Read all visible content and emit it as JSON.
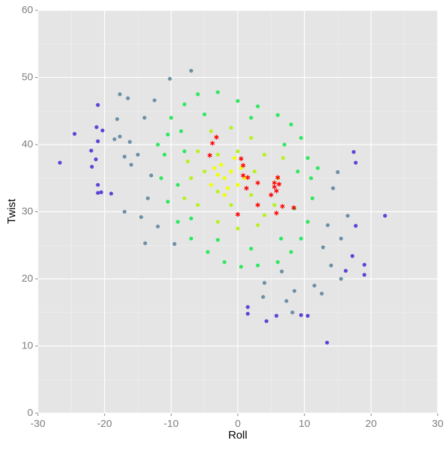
{
  "chart_data": {
    "type": "scatter",
    "x_label": "Roll",
    "y_label": "Twist",
    "xlim": [
      -30,
      30
    ],
    "ylim": [
      0,
      60
    ],
    "xticks": [
      -30,
      -20,
      -10,
      0,
      10,
      20,
      30
    ],
    "yticks": [
      0,
      10,
      20,
      30,
      40,
      50,
      60
    ],
    "xminor": [
      -25,
      -15,
      -5,
      5,
      15,
      25
    ],
    "yminor": [
      5,
      15,
      25,
      35,
      45,
      55
    ],
    "grid": true,
    "series": [
      {
        "color": "#5b44d6",
        "marker": "circle",
        "x": [
          -26.7,
          -24.5,
          -21,
          -21.2,
          -20.3,
          -21,
          -22,
          -21.3,
          -21.9,
          -21,
          -20.5,
          -21,
          -19,
          13.4,
          22.1,
          19,
          19,
          17.7,
          17.4,
          17.7,
          9.5,
          10.5,
          5.8,
          4.3,
          1.5,
          1.5,
          17.2,
          16.2
        ],
        "y": [
          37.3,
          41.6,
          45.9,
          42.6,
          42.1,
          40.5,
          39.1,
          37.8,
          36.7,
          34,
          32.9,
          32.8,
          32.7,
          10.5,
          29.4,
          22.1,
          20.6,
          27.9,
          38.9,
          37.3,
          14.6,
          14.5,
          14.5,
          13.7,
          15.8,
          14.8,
          23.4,
          21.2
        ]
      },
      {
        "color": "#6d90a6",
        "marker": "circle",
        "x": [
          -17.7,
          -16.5,
          -18.1,
          -17.7,
          -18.5,
          -16.2,
          -17,
          -16,
          -17,
          -14.5,
          -13.9,
          -13,
          -15,
          -14,
          -12.5,
          -10.2,
          -7,
          15,
          14.3,
          16.5,
          15.5,
          14,
          15.5,
          12.6,
          11.5,
          8.5,
          7.3,
          3.8,
          4,
          6.6,
          13.5,
          12.8,
          -13.5,
          -12,
          -9.5,
          8.2
        ],
        "y": [
          47.5,
          46.9,
          43.8,
          41.2,
          40.8,
          40.4,
          38.2,
          37,
          30,
          29.2,
          25.3,
          35.4,
          38.5,
          44,
          46.6,
          49.8,
          51,
          35.9,
          33.5,
          29.4,
          26,
          22,
          20,
          17.8,
          19,
          18.2,
          16.7,
          17.3,
          19.4,
          21.1,
          28,
          24.7,
          32,
          27.8,
          25.2,
          15
        ]
      },
      {
        "color": "#2ee860",
        "marker": "circle",
        "x": [
          -10,
          -8,
          -6,
          -3,
          0,
          3,
          6,
          8,
          9.5,
          10.5,
          11,
          11.2,
          10.5,
          9.5,
          8,
          6,
          3,
          0.5,
          -2,
          -4.5,
          -7,
          -9,
          -10.5,
          -11.5,
          -11,
          -10.5,
          -8.5,
          -5,
          2,
          7,
          9,
          8.5,
          6.5,
          2,
          -3,
          -7,
          -9,
          -8,
          12,
          -12
        ],
        "y": [
          44,
          46,
          47.5,
          47.8,
          46.5,
          45.7,
          44.4,
          43,
          41,
          38,
          35,
          32,
          28.5,
          26,
          24,
          22.5,
          22,
          21.8,
          22.5,
          24,
          26,
          28.5,
          31.5,
          35,
          38.5,
          41.5,
          42,
          44.5,
          44,
          40,
          36,
          30.5,
          26,
          24.5,
          25.8,
          29,
          34,
          39,
          36.5,
          40
        ]
      },
      {
        "color": "#b8f21e",
        "marker": "circle",
        "x": [
          -6,
          -4,
          -1,
          2,
          4,
          6,
          5.5,
          3,
          0,
          -3,
          -6,
          -7,
          -5,
          -3,
          0,
          2.5,
          2,
          -1,
          -3,
          -7.5,
          6.8,
          -8,
          4
        ],
        "y": [
          39,
          42,
          42.5,
          41,
          38.5,
          35,
          31,
          28,
          27.5,
          28.5,
          31,
          35,
          36,
          38.5,
          39,
          36,
          32.5,
          31,
          33,
          37.5,
          38,
          32,
          29.5
        ]
      },
      {
        "color": "#f2ff00",
        "marker": "circle",
        "x": [
          -2,
          -1,
          -3,
          0,
          -1.5,
          -2.5,
          0.5,
          -4,
          1,
          -2,
          -0.5,
          -3.5
        ],
        "y": [
          35,
          36,
          35.5,
          34,
          33.5,
          37,
          36.5,
          34,
          35,
          32.5,
          38,
          36.5
        ]
      },
      {
        "color": "#ff0000",
        "marker": "star",
        "x": [
          -4.2,
          -3.8,
          -3.2,
          0.5,
          0.8,
          0.8,
          1.5,
          1.3,
          3,
          0,
          3,
          5,
          5.5,
          5.5,
          6,
          6.2,
          5.8,
          5.8,
          6.7,
          8.4
        ],
        "y": [
          38.4,
          40.2,
          41.1,
          37.9,
          36.9,
          35.4,
          35.1,
          33.5,
          34.3,
          29.6,
          31,
          32.5,
          34.3,
          33.7,
          35.1,
          34.1,
          33.1,
          29.8,
          30.8,
          30.6
        ]
      }
    ]
  }
}
